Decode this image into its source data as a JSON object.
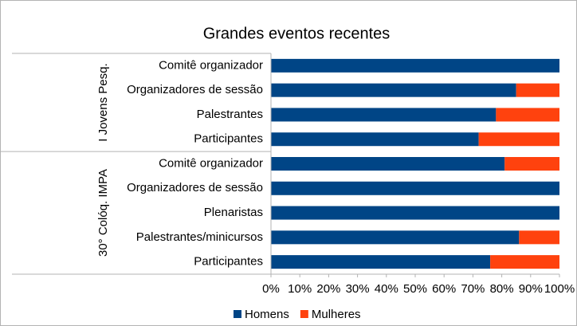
{
  "chart_data": {
    "type": "stacked_barh",
    "title": "Grandes eventos recentes",
    "groups": [
      {
        "name": "I Jovens Pesq.",
        "categories": [
          "Comitê organizador",
          "Organizadores de sessão",
          "Palestrantes",
          "Participantes"
        ]
      },
      {
        "name": "30° Colóq. IMPA",
        "categories": [
          "Comitê organizador",
          "Organizadores de sessão",
          "Plenaristas",
          "Palestrantes/minicursos",
          "Participantes"
        ]
      }
    ],
    "series": [
      {
        "name": "Homens",
        "color": "#004586",
        "values": [
          100,
          85,
          78,
          72,
          81,
          100,
          100,
          86,
          76
        ]
      },
      {
        "name": "Mulheres",
        "color": "#ff420e",
        "values": [
          0,
          15,
          22,
          28,
          19,
          0,
          0,
          14,
          24
        ]
      }
    ],
    "xlim": [
      0,
      100
    ],
    "xticks": [
      {
        "value": 0,
        "label": "0%"
      },
      {
        "value": 10,
        "label": "10%"
      },
      {
        "value": 20,
        "label": "20%"
      },
      {
        "value": 30,
        "label": "30%"
      },
      {
        "value": 40,
        "label": "40%"
      },
      {
        "value": 50,
        "label": "50%"
      },
      {
        "value": 60,
        "label": "60%"
      },
      {
        "value": 70,
        "label": "70%"
      },
      {
        "value": 80,
        "label": "80%"
      },
      {
        "value": 90,
        "label": "90%"
      },
      {
        "value": 100,
        "label": "100%"
      }
    ],
    "legend": "bottom"
  }
}
